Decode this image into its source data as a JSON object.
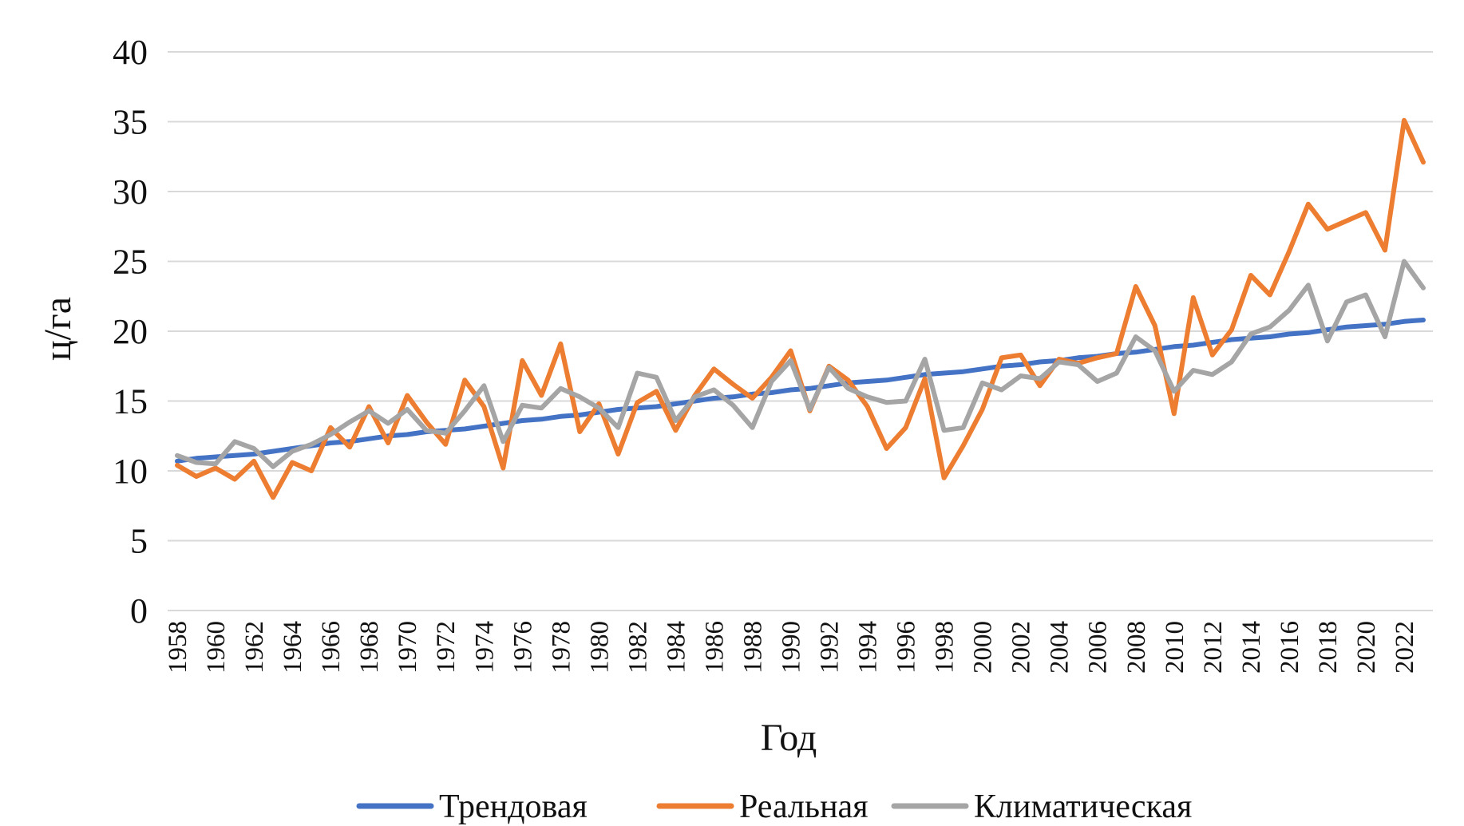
{
  "chart_data": {
    "type": "line",
    "title": "",
    "xlabel": "Год",
    "ylabel": "ц/га",
    "ylim": [
      0,
      40
    ],
    "yticks": [
      0,
      5,
      10,
      15,
      20,
      25,
      30,
      35,
      40
    ],
    "ytick_labels": [
      "0",
      "5",
      "10",
      "15",
      "20",
      "25",
      "30",
      "35",
      "40"
    ],
    "grid": true,
    "legend_position": "bottom",
    "x": [
      1958,
      1959,
      1960,
      1961,
      1962,
      1963,
      1964,
      1965,
      1966,
      1967,
      1968,
      1969,
      1970,
      1971,
      1972,
      1973,
      1974,
      1975,
      1976,
      1977,
      1978,
      1979,
      1980,
      1981,
      1982,
      1983,
      1984,
      1985,
      1986,
      1987,
      1988,
      1989,
      1990,
      1991,
      1992,
      1993,
      1994,
      1995,
      1996,
      1997,
      1998,
      1999,
      2000,
      2001,
      2002,
      2003,
      2004,
      2005,
      2006,
      2007,
      2008,
      2009,
      2010,
      2011,
      2012,
      2013,
      2014,
      2015,
      2016,
      2017,
      2018,
      2019,
      2020,
      2021,
      2022,
      2023
    ],
    "xtick_labels": [
      "1958",
      "1960",
      "1962",
      "1964",
      "1966",
      "1968",
      "1970",
      "1972",
      "1974",
      "1976",
      "1978",
      "1980",
      "1982",
      "1984",
      "1986",
      "1988",
      "1990",
      "1992",
      "1994",
      "1996",
      "1998",
      "2000",
      "2002",
      "2004",
      "2006",
      "2008",
      "2010",
      "2012",
      "2014",
      "2016",
      "2018",
      "2020",
      "2022"
    ],
    "series": [
      {
        "name": "Трендовая",
        "color": "#4472C4",
        "values": [
          10.7,
          10.9,
          11.0,
          11.1,
          11.2,
          11.4,
          11.6,
          11.8,
          12.0,
          12.1,
          12.3,
          12.5,
          12.6,
          12.8,
          12.9,
          13.0,
          13.2,
          13.4,
          13.6,
          13.7,
          13.9,
          14.0,
          14.2,
          14.4,
          14.5,
          14.6,
          14.8,
          15.0,
          15.2,
          15.3,
          15.5,
          15.6,
          15.8,
          15.9,
          16.1,
          16.3,
          16.4,
          16.5,
          16.7,
          16.9,
          17.0,
          17.1,
          17.3,
          17.5,
          17.6,
          17.8,
          17.9,
          18.1,
          18.2,
          18.4,
          18.5,
          18.7,
          18.9,
          19.0,
          19.2,
          19.4,
          19.5,
          19.6,
          19.8,
          19.9,
          20.1,
          20.3,
          20.4,
          20.5,
          20.7,
          20.8
        ]
      },
      {
        "name": "Реальная",
        "color": "#ED7D31",
        "values": [
          10.4,
          9.6,
          10.2,
          9.4,
          10.7,
          8.1,
          10.6,
          10.0,
          13.1,
          11.7,
          14.6,
          12.0,
          15.4,
          13.5,
          11.9,
          16.5,
          14.6,
          10.2,
          17.9,
          15.4,
          19.1,
          12.8,
          14.8,
          11.2,
          14.9,
          15.7,
          12.9,
          15.4,
          17.3,
          16.2,
          15.2,
          16.7,
          18.6,
          14.3,
          17.5,
          16.5,
          14.6,
          11.6,
          13.1,
          16.6,
          9.5,
          11.8,
          14.4,
          18.1,
          18.3,
          16.1,
          18.0,
          17.7,
          18.1,
          18.4,
          23.2,
          20.4,
          14.1,
          22.4,
          18.3,
          20.1,
          24.0,
          22.6,
          25.7,
          29.1,
          27.3,
          27.9,
          28.5,
          25.8,
          35.1,
          32.1
        ]
      },
      {
        "name": "Климатическая",
        "color": "#A5A5A5",
        "values": [
          11.1,
          10.6,
          10.5,
          12.1,
          11.6,
          10.3,
          11.4,
          11.9,
          12.6,
          13.5,
          14.3,
          13.4,
          14.4,
          12.9,
          12.7,
          14.3,
          16.1,
          12.1,
          14.7,
          14.5,
          15.9,
          15.3,
          14.5,
          13.1,
          17.0,
          16.7,
          13.6,
          15.3,
          15.8,
          14.7,
          13.1,
          16.4,
          17.9,
          14.4,
          17.4,
          15.9,
          15.3,
          14.9,
          15.0,
          18.0,
          12.9,
          13.1,
          16.3,
          15.8,
          16.8,
          16.6,
          17.8,
          17.6,
          16.4,
          17.0,
          19.6,
          18.6,
          15.7,
          17.2,
          16.9,
          17.8,
          19.8,
          20.3,
          21.5,
          23.3,
          19.3,
          22.1,
          22.6,
          19.6,
          25.0,
          23.1
        ]
      }
    ]
  }
}
